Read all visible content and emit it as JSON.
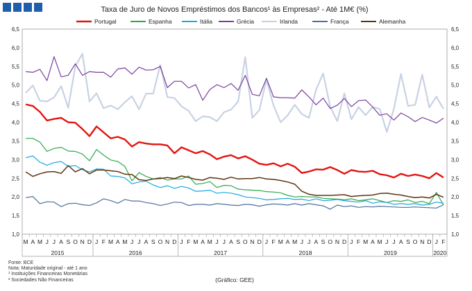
{
  "chart_data": {
    "type": "line",
    "title": "Taxa de Juro de Novos Empréstimos dos Bancos¹ às Empresas² - Até 1M€ (%)",
    "ylim": [
      1.0,
      6.5
    ],
    "yticks": [
      "1,0",
      "1,5",
      "2,0",
      "2,5",
      "3,0",
      "3,5",
      "4,0",
      "4,5",
      "5,0",
      "5,5",
      "6,0",
      "6,5"
    ],
    "month_labels": [
      "M",
      "A",
      "M",
      "J",
      "J",
      "A",
      "S",
      "O",
      "N",
      "D",
      "J",
      "F",
      "M",
      "A",
      "M",
      "J",
      "J",
      "A",
      "S",
      "O",
      "N",
      "D",
      "J",
      "F",
      "M",
      "A",
      "M",
      "J",
      "J",
      "A",
      "S",
      "O",
      "N",
      "D",
      "J",
      "F",
      "M",
      "A",
      "M",
      "J",
      "J",
      "A",
      "S",
      "O",
      "N",
      "D",
      "J",
      "F",
      "M",
      "A",
      "M",
      "J",
      "J",
      "A",
      "S",
      "O",
      "N",
      "D",
      "J",
      "F"
    ],
    "year_labels": [
      {
        "label": "2015",
        "start": 0,
        "end": 9
      },
      {
        "label": "2016",
        "start": 10,
        "end": 21
      },
      {
        "label": "2017",
        "start": 22,
        "end": 33
      },
      {
        "label": "2018",
        "start": 34,
        "end": 45
      },
      {
        "label": "2019",
        "start": 46,
        "end": 57
      },
      {
        "label": "2020",
        "start": 58,
        "end": 59
      }
    ],
    "series": [
      {
        "name": "Portugal",
        "color": "#e3130f",
        "width": 2.4,
        "values": [
          4.48,
          4.44,
          4.28,
          4.05,
          4.09,
          4.12,
          4.0,
          3.99,
          3.82,
          3.63,
          3.89,
          3.73,
          3.57,
          3.61,
          3.54,
          3.35,
          3.47,
          3.43,
          3.41,
          3.41,
          3.38,
          3.17,
          3.33,
          3.25,
          3.17,
          3.23,
          3.14,
          3.01,
          3.08,
          3.12,
          3.03,
          3.09,
          3.0,
          2.89,
          2.86,
          2.9,
          2.82,
          2.89,
          2.81,
          2.64,
          2.68,
          2.74,
          2.73,
          2.8,
          2.72,
          2.62,
          2.72,
          2.68,
          2.67,
          2.7,
          2.61,
          2.58,
          2.52,
          2.62,
          2.56,
          2.6,
          2.56,
          2.5,
          2.64,
          2.52
        ]
      },
      {
        "name": "Espanha",
        "color": "#2aa84a",
        "width": 1.2,
        "values": [
          3.57,
          3.57,
          3.47,
          3.22,
          3.3,
          3.33,
          3.23,
          3.22,
          3.15,
          2.97,
          3.27,
          3.12,
          2.99,
          2.95,
          2.82,
          2.43,
          2.65,
          2.55,
          2.48,
          2.52,
          2.45,
          2.48,
          2.48,
          2.56,
          2.34,
          2.36,
          2.41,
          2.25,
          2.31,
          2.3,
          2.21,
          2.19,
          2.18,
          2.17,
          2.14,
          2.13,
          2.11,
          2.04,
          2.0,
          2.01,
          2.0,
          2.0,
          1.96,
          1.95,
          1.94,
          1.92,
          1.95,
          1.9,
          1.92,
          1.95,
          1.9,
          1.85,
          1.9,
          1.88,
          1.92,
          1.85,
          1.88,
          1.82,
          2.12,
          1.78
        ]
      },
      {
        "name": "Itália",
        "color": "#1aa6e0",
        "width": 1.2,
        "values": [
          3.05,
          3.1,
          2.93,
          2.85,
          2.92,
          2.95,
          2.82,
          2.84,
          2.73,
          2.67,
          2.75,
          2.74,
          2.56,
          2.55,
          2.51,
          2.35,
          2.4,
          2.42,
          2.32,
          2.25,
          2.3,
          2.23,
          2.28,
          2.24,
          2.15,
          2.16,
          2.18,
          2.1,
          2.12,
          2.1,
          2.06,
          2.0,
          1.98,
          1.96,
          1.92,
          1.93,
          1.95,
          1.96,
          1.93,
          1.94,
          1.9,
          1.95,
          1.9,
          1.91,
          1.93,
          1.9,
          1.88,
          1.86,
          1.9,
          1.83,
          1.87,
          1.85,
          1.8,
          1.82,
          1.8,
          1.82,
          1.78,
          1.8,
          1.86,
          1.83
        ]
      },
      {
        "name": "Grécia",
        "color": "#7a3e9d",
        "width": 1.2,
        "values": [
          5.36,
          5.34,
          5.42,
          5.12,
          5.76,
          5.22,
          5.26,
          5.57,
          5.26,
          5.36,
          5.34,
          5.34,
          5.21,
          5.43,
          5.46,
          5.29,
          5.48,
          5.4,
          5.41,
          5.5,
          4.93,
          5.1,
          5.1,
          4.92,
          5.01,
          4.59,
          4.88,
          5.01,
          4.93,
          5.04,
          4.86,
          5.26,
          4.75,
          4.71,
          5.18,
          4.68,
          4.66,
          4.66,
          4.65,
          4.87,
          4.68,
          4.47,
          4.65,
          4.37,
          4.46,
          4.64,
          4.42,
          4.58,
          4.6,
          4.41,
          4.19,
          4.23,
          4.06,
          4.25,
          4.15,
          4.02,
          4.13,
          4.06,
          3.98,
          4.11
        ]
      },
      {
        "name": "Irlanda",
        "color": "#c8d2e3",
        "width": 2.2,
        "values": [
          4.79,
          4.99,
          4.58,
          4.56,
          4.67,
          4.97,
          4.39,
          5.5,
          5.84,
          4.56,
          4.78,
          4.38,
          4.45,
          4.35,
          4.54,
          4.7,
          4.35,
          4.77,
          4.77,
          5.54,
          4.68,
          4.65,
          4.43,
          4.31,
          4.03,
          4.16,
          4.14,
          4.03,
          4.27,
          4.34,
          4.56,
          5.75,
          4.12,
          4.33,
          5.14,
          4.45,
          4.0,
          4.19,
          4.47,
          4.22,
          4.12,
          4.87,
          5.31,
          4.42,
          4.03,
          4.78,
          4.08,
          4.41,
          4.19,
          4.41,
          4.36,
          3.74,
          4.36,
          5.3,
          4.44,
          4.47,
          5.28,
          4.4,
          4.69,
          4.36
        ]
      },
      {
        "name": "França",
        "color": "#4c6f9c",
        "width": 1.2,
        "values": [
          1.98,
          2.01,
          1.82,
          1.87,
          1.86,
          1.74,
          1.82,
          1.83,
          1.79,
          1.77,
          1.84,
          1.95,
          1.9,
          1.83,
          1.93,
          1.89,
          1.89,
          1.85,
          1.82,
          1.77,
          1.81,
          1.86,
          1.85,
          1.77,
          1.8,
          1.8,
          1.78,
          1.82,
          1.8,
          1.78,
          1.77,
          1.8,
          1.79,
          1.75,
          1.79,
          1.81,
          1.8,
          1.78,
          1.82,
          1.78,
          1.82,
          1.79,
          1.76,
          1.67,
          1.78,
          1.74,
          1.76,
          1.72,
          1.74,
          1.73,
          1.75,
          1.74,
          1.73,
          1.72,
          1.72,
          1.73,
          1.72,
          1.71,
          1.7,
          1.79
        ]
      },
      {
        "name": "Alemanha",
        "color": "#5c3310",
        "width": 1.5,
        "values": [
          2.67,
          2.55,
          2.62,
          2.67,
          2.68,
          2.63,
          2.84,
          2.67,
          2.76,
          2.62,
          2.72,
          2.72,
          2.7,
          2.68,
          2.61,
          2.6,
          2.46,
          2.44,
          2.48,
          2.49,
          2.52,
          2.49,
          2.56,
          2.52,
          2.47,
          2.45,
          2.52,
          2.5,
          2.47,
          2.53,
          2.48,
          2.49,
          2.49,
          2.52,
          2.48,
          2.47,
          2.44,
          2.4,
          2.34,
          2.15,
          2.07,
          2.04,
          2.04,
          2.04,
          2.05,
          2.06,
          2.01,
          2.03,
          2.04,
          2.05,
          2.09,
          2.1,
          2.07,
          2.05,
          2.01,
          1.98,
          2.0,
          1.97,
          2.07,
          1.99
        ]
      }
    ],
    "notes": [
      "Fonte: BCE",
      "Nota: Maturidade original - até 1 ano",
      "¹ Instituições Financeiras Monetárias",
      "² Sociedades Não Financeiras"
    ],
    "credit": "(Gráfico: GEE)"
  }
}
